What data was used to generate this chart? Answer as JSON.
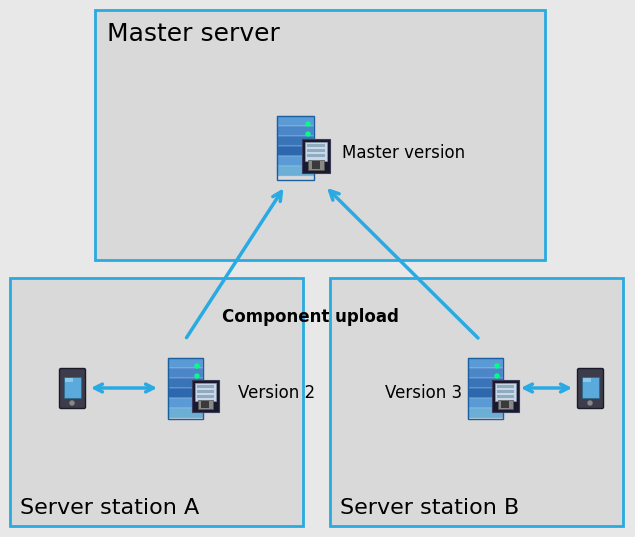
{
  "bg_color": "#e8e8e8",
  "fig_bg": "#e8e8e8",
  "box_fill": "#d9d9d9",
  "box_edge": "#29aae2",
  "box_edge_width": 2.0,
  "master_label": "Master server",
  "stationA_label": "Server station A",
  "stationB_label": "Server station B",
  "master_version_label": "Master version",
  "version2_label": "Version 2",
  "version3_label": "Version 3",
  "upload_label": "Component upload",
  "title_fontsize": 18,
  "version_fontsize": 12,
  "upload_fontsize": 12,
  "arrow_color": "#29aae2",
  "arrow_lw": 2.5
}
